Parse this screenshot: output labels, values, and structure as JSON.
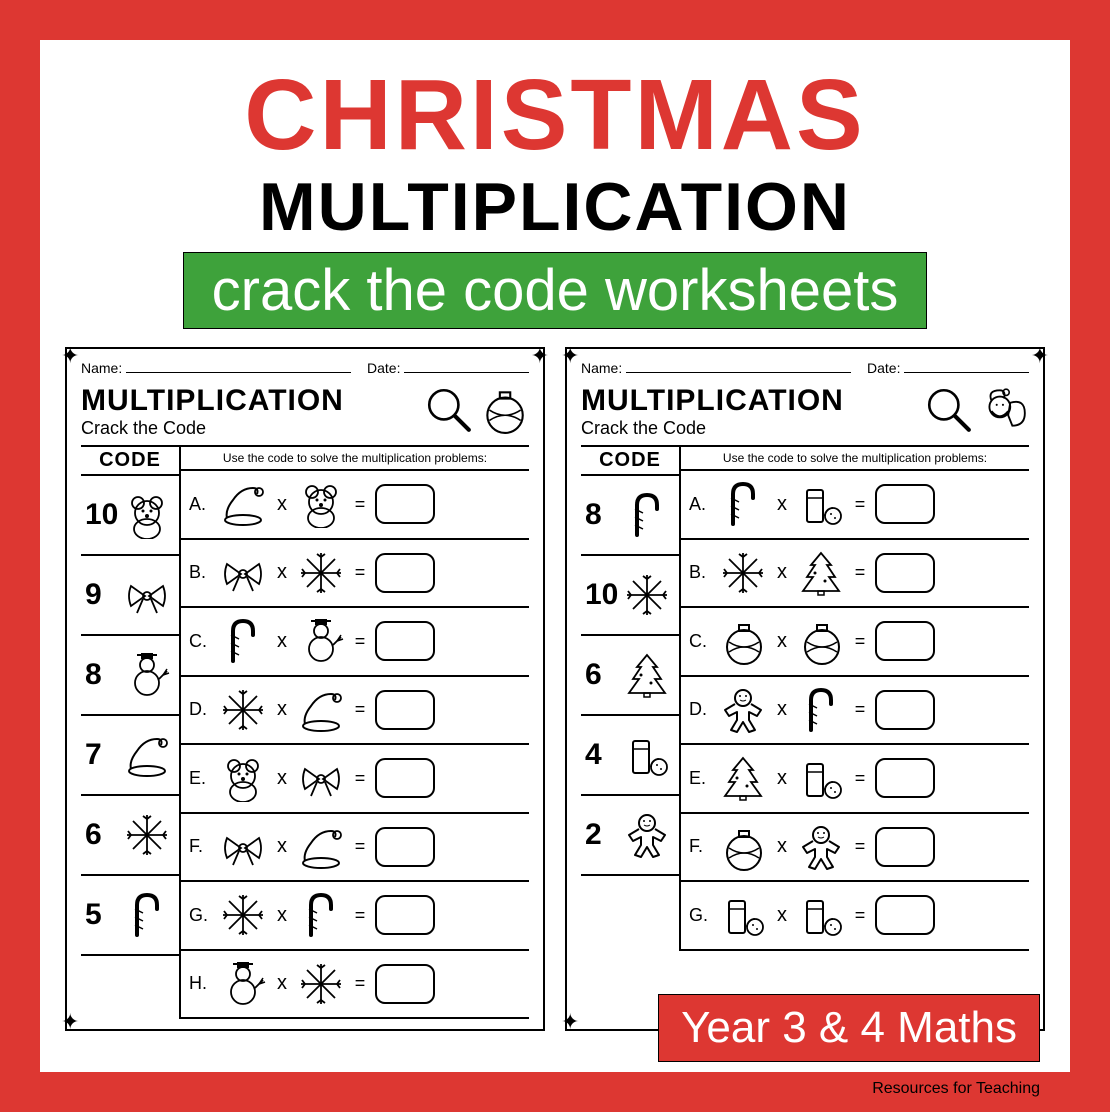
{
  "colors": {
    "red": "#dd3732",
    "green": "#3ea23b",
    "white": "#ffffff",
    "black": "#000000"
  },
  "header": {
    "line1": "CHRISTMAS",
    "line2": "MULTIPLICATION",
    "banner": "crack the code worksheets"
  },
  "common": {
    "name_label": "Name:",
    "date_label": "Date:",
    "title": "MULTIPLICATION",
    "subtitle": "Crack the Code",
    "code_header": "CODE",
    "instruction": "Use the code to solve the multiplication problems:"
  },
  "sheets": [
    {
      "header_icon": "ornament",
      "codes": [
        {
          "num": "10",
          "icon": "bear"
        },
        {
          "num": "9",
          "icon": "bow"
        },
        {
          "num": "8",
          "icon": "snowman"
        },
        {
          "num": "7",
          "icon": "hat"
        },
        {
          "num": "6",
          "icon": "snowflake"
        },
        {
          "num": "5",
          "icon": "candycane"
        }
      ],
      "problems": [
        {
          "label": "A.",
          "a": "hat",
          "b": "bear"
        },
        {
          "label": "B.",
          "a": "bow",
          "b": "snowflake"
        },
        {
          "label": "C.",
          "a": "candycane",
          "b": "snowman"
        },
        {
          "label": "D.",
          "a": "snowflake",
          "b": "hat"
        },
        {
          "label": "E.",
          "a": "bear",
          "b": "bow"
        },
        {
          "label": "F.",
          "a": "bow",
          "b": "hat"
        },
        {
          "label": "G.",
          "a": "snowflake",
          "b": "candycane"
        },
        {
          "label": "H.",
          "a": "snowman",
          "b": "snowflake"
        }
      ]
    },
    {
      "header_icon": "santa",
      "codes": [
        {
          "num": "8",
          "icon": "candycane"
        },
        {
          "num": "10",
          "icon": "snowflake"
        },
        {
          "num": "6",
          "icon": "tree"
        },
        {
          "num": "4",
          "icon": "milk"
        },
        {
          "num": "2",
          "icon": "gingerbread"
        }
      ],
      "problems": [
        {
          "label": "A.",
          "a": "candycane",
          "b": "milk"
        },
        {
          "label": "B.",
          "a": "snowflake",
          "b": "tree"
        },
        {
          "label": "C.",
          "a": "ornament",
          "b": "ornament"
        },
        {
          "label": "D.",
          "a": "gingerbread",
          "b": "candycane"
        },
        {
          "label": "E.",
          "a": "tree",
          "b": "milk"
        },
        {
          "label": "F.",
          "a": "ornament",
          "b": "gingerbread"
        },
        {
          "label": "G.",
          "a": "milk",
          "b": "milk"
        }
      ]
    }
  ],
  "badge": "Year 3 & 4 Maths",
  "credits": "Resources for Teaching"
}
